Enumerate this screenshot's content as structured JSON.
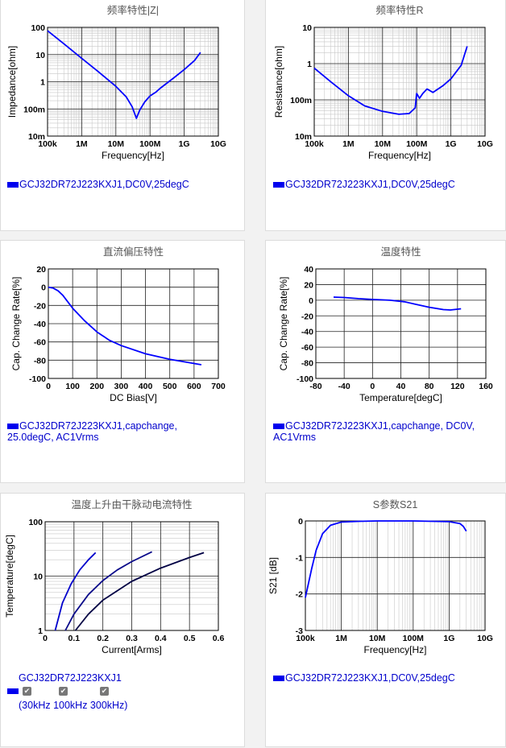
{
  "panels": [
    {
      "title": "频率特性|Z|",
      "legend": "GCJ32DR72J223KXJ1,DC0V,25degC",
      "chart_data": {
        "type": "line",
        "xscale": "log",
        "yscale": "log",
        "xlim": [
          100000,
          10000000000
        ],
        "ylim": [
          0.01,
          100
        ],
        "xticks": [
          "100k",
          "1M",
          "10M",
          "100M",
          "1G",
          "10G"
        ],
        "yticks": [
          "100",
          "10",
          "1",
          "100m",
          "10m"
        ],
        "xlabel": "Frequency[Hz]",
        "ylabel": "Impedance[ohm]",
        "series": [
          {
            "x": [
              100000,
              300000,
              1000000,
              3000000,
              10000000,
              20000000,
              30000000,
              40000000,
              50000000,
              70000000,
              100000000,
              150000000,
              200000000,
              500000000,
              1000000000,
              2000000000,
              3000000000
            ],
            "y": [
              75,
              25,
              7.3,
              2.4,
              0.68,
              0.28,
              0.12,
              0.045,
              0.09,
              0.18,
              0.3,
              0.42,
              0.58,
              1.4,
              2.8,
              6,
              12
            ]
          }
        ]
      }
    },
    {
      "title": "频率特性R",
      "legend": "GCJ32DR72J223KXJ1,DC0V,25degC",
      "chart_data": {
        "type": "line",
        "xscale": "log",
        "yscale": "log",
        "xlim": [
          100000,
          10000000000
        ],
        "ylim": [
          0.01,
          10
        ],
        "xticks": [
          "100k",
          "1M",
          "10M",
          "100M",
          "1G",
          "10G"
        ],
        "yticks": [
          "10",
          "1",
          "100m",
          "10m"
        ],
        "xlabel": "Frequency[Hz]",
        "ylabel": "Resistance[ohm]",
        "series": [
          {
            "x": [
              100000,
              300000,
              1000000,
              3000000,
              10000000,
              30000000,
              60000000,
              90000000,
              100000000,
              120000000,
              150000000,
              200000000,
              300000000,
              600000000,
              1000000000,
              2000000000,
              3000000000
            ],
            "y": [
              0.75,
              0.32,
              0.13,
              0.068,
              0.048,
              0.04,
              0.042,
              0.06,
              0.15,
              0.11,
              0.15,
              0.2,
              0.16,
              0.25,
              0.38,
              0.9,
              3
            ]
          }
        ]
      }
    },
    {
      "title": "直流偏压特性",
      "legend": "GCJ32DR72J223KXJ1,capchange, 25.0degC, AC1Vrms",
      "chart_data": {
        "type": "line",
        "xlim": [
          0,
          700
        ],
        "ylim": [
          -100,
          20
        ],
        "xticks": [
          "0",
          "100",
          "200",
          "300",
          "400",
          "500",
          "600",
          "700"
        ],
        "yticks": [
          "20",
          "0",
          "-20",
          "-40",
          "-60",
          "-80",
          "-100"
        ],
        "xlabel": "DC Bias[V]",
        "ylabel": "Cap. Change Rate[%]",
        "series": [
          {
            "x": [
              0,
              20,
              40,
              60,
              80,
              100,
              150,
              200,
              250,
              300,
              400,
              500,
              630
            ],
            "y": [
              0,
              -1,
              -4,
              -9,
              -16,
              -23,
              -37,
              -49,
              -58,
              -64,
              -73,
              -79,
              -85
            ]
          }
        ]
      }
    },
    {
      "title": "温度特性",
      "legend": "GCJ32DR72J223KXJ1,capchange, DC0V, AC1Vrms",
      "chart_data": {
        "type": "line",
        "xlim": [
          -80,
          160
        ],
        "ylim": [
          -100,
          40
        ],
        "xticks": [
          "-80",
          "-40",
          "0",
          "40",
          "80",
          "120",
          "160"
        ],
        "yticks": [
          "40",
          "20",
          "0",
          "-20",
          "-40",
          "-60",
          "-80",
          "-100"
        ],
        "xlabel": "Temperature[degC]",
        "ylabel": "Cap. Change Rate[%]",
        "series": [
          {
            "x": [
              -55,
              -40,
              -20,
              0,
              25,
              45,
              60,
              80,
              100,
              110,
              125
            ],
            "y": [
              4,
              3.5,
              2,
              1,
              0,
              -2,
              -5,
              -9,
              -12,
              -12.5,
              -11
            ]
          }
        ]
      }
    },
    {
      "title": "温度上升由干脉动电流特性",
      "legend": "GCJ32DR72J223KXJ1",
      "checks": [
        "30kHz",
        "100kHz",
        "300kHz"
      ],
      "check_legend": "(30kHz 100kHz 300kHz)",
      "chart_data": {
        "type": "line",
        "xlim": [
          0,
          0.6
        ],
        "ylim": [
          1,
          100
        ],
        "yscale": "log",
        "xticks": [
          "0",
          "0.1",
          "0.2",
          "0.3",
          "0.4",
          "0.5",
          "0.6"
        ],
        "yticks": [
          "100",
          "10",
          "1"
        ],
        "xlabel": "Current[Arms]",
        "ylabel": "Temperature[degC]",
        "series": [
          {
            "name": "30kHz",
            "x": [
              0.035,
              0.06,
              0.09,
              0.12,
              0.15,
              0.175
            ],
            "y": [
              1,
              3.2,
              7.2,
              13,
              20,
              27
            ]
          },
          {
            "name": "100kHz",
            "x": [
              0.07,
              0.1,
              0.15,
              0.2,
              0.25,
              0.3,
              0.37
            ],
            "y": [
              1,
              2,
              4.6,
              8.3,
              13,
              18.5,
              28
            ]
          },
          {
            "name": "300kHz",
            "x": [
              0.105,
              0.15,
              0.2,
              0.3,
              0.4,
              0.5,
              0.55
            ],
            "y": [
              1,
              2,
              3.6,
              8,
              14,
              22,
              27
            ]
          }
        ]
      }
    },
    {
      "title": "S参数S21",
      "legend": "GCJ32DR72J223KXJ1,DC0V,25degC",
      "chart_data": {
        "type": "line",
        "xscale": "log",
        "xlim": [
          100000,
          10000000000
        ],
        "ylim": [
          -3,
          0
        ],
        "xticks": [
          "100k",
          "1M",
          "10M",
          "100M",
          "1G",
          "10G"
        ],
        "yticks": [
          "0",
          "-1",
          "-2",
          "-3"
        ],
        "xlabel": "Frequency[Hz]",
        "ylabel": "S21 [dB]",
        "series": [
          {
            "x": [
              100000,
              150000,
              200000,
              300000,
              500000,
              1000000,
              3000000,
              10000000,
              100000000,
              1000000000,
              2000000000,
              2500000000,
              3000000000
            ],
            "y": [
              -2.1,
              -1.3,
              -0.8,
              -0.35,
              -0.12,
              -0.03,
              -0.01,
              0,
              0,
              -0.02,
              -0.07,
              -0.15,
              -0.28
            ]
          }
        ]
      }
    }
  ]
}
